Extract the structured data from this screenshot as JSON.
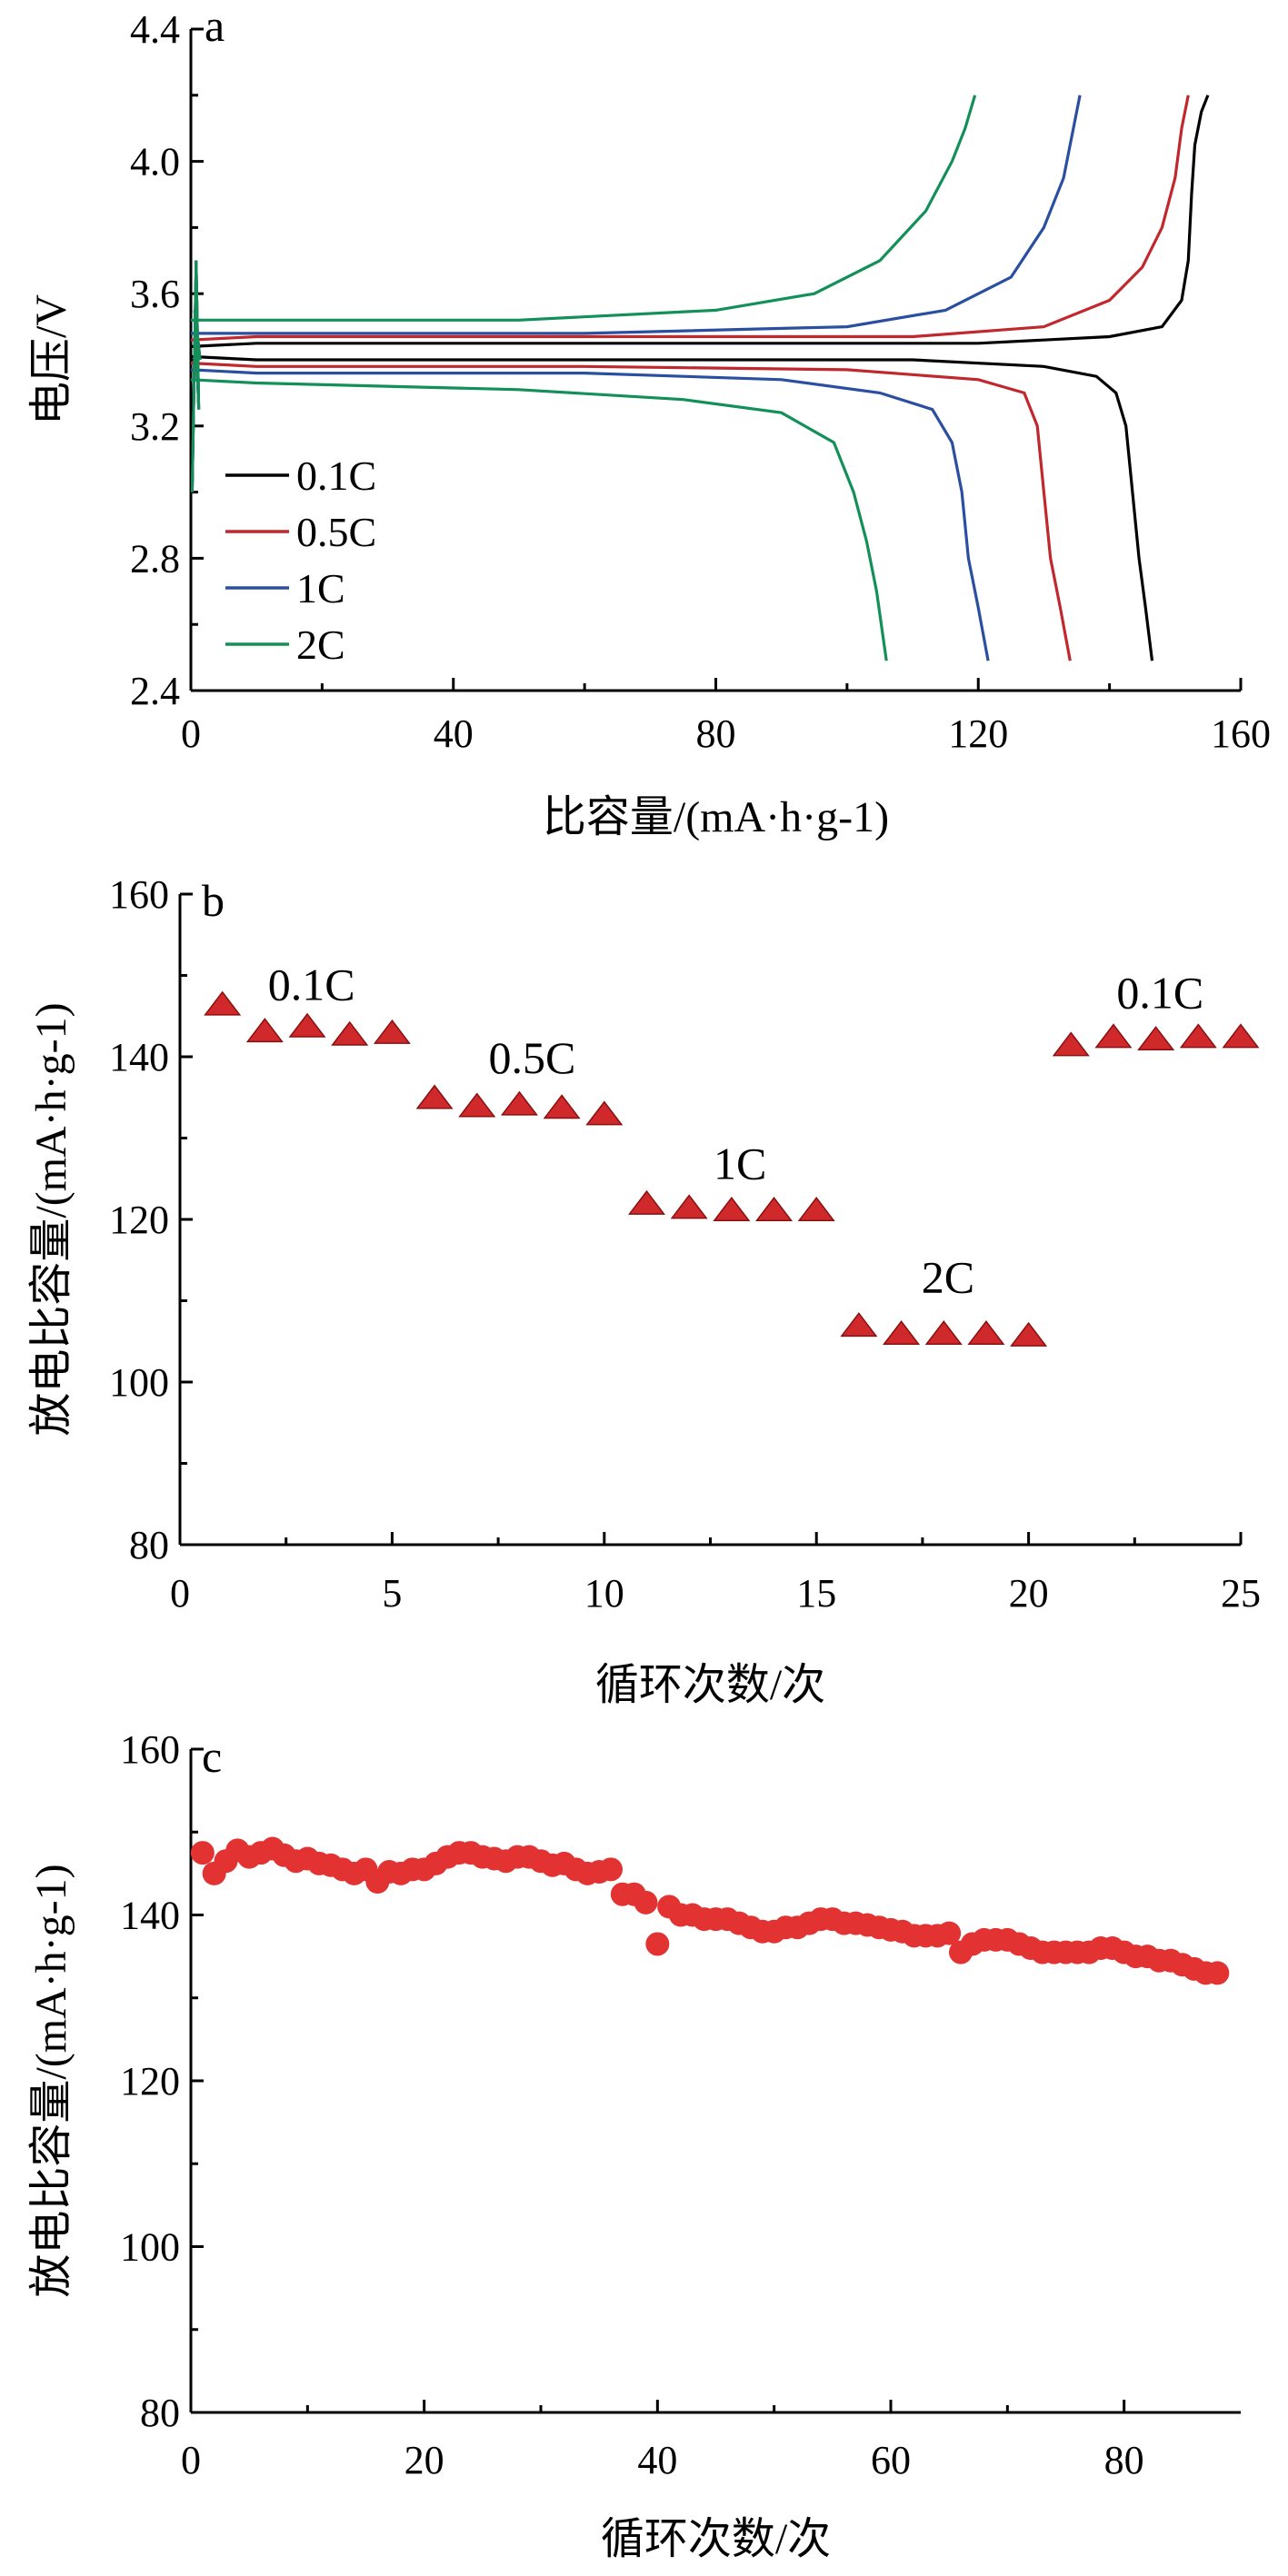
{
  "chart_data": [
    {
      "type": "line",
      "panel_letter": "a",
      "xlabel": "比容量/(mA·h·g-1)",
      "ylabel": "电压/V",
      "xlim": [
        0,
        160
      ],
      "ylim": [
        2.4,
        4.4
      ],
      "x_ticks": [
        0,
        40,
        80,
        120,
        160
      ],
      "y_ticks": [
        2.4,
        2.8,
        3.2,
        3.6,
        4.0,
        4.4
      ],
      "legend": "left-middle",
      "series": [
        {
          "name": "0.1C",
          "color": "#000000",
          "charge": [
            [
              0,
              3.44
            ],
            [
              10,
              3.45
            ],
            [
              60,
              3.45
            ],
            [
              120,
              3.45
            ],
            [
              140,
              3.47
            ],
            [
              148,
              3.5
            ],
            [
              151,
              3.58
            ],
            [
              152,
              3.7
            ],
            [
              152.5,
              3.9
            ],
            [
              153,
              4.05
            ],
            [
              154,
              4.15
            ],
            [
              155,
              4.2
            ]
          ],
          "discharge": [
            [
              0,
              3.41
            ],
            [
              10,
              3.4
            ],
            [
              60,
              3.4
            ],
            [
              110,
              3.4
            ],
            [
              130,
              3.38
            ],
            [
              138,
              3.35
            ],
            [
              141,
              3.3
            ],
            [
              142.5,
              3.2
            ],
            [
              143.5,
              3.0
            ],
            [
              144.5,
              2.8
            ],
            [
              145.5,
              2.65
            ],
            [
              146.5,
              2.49
            ]
          ]
        },
        {
          "name": "0.5C",
          "color": "#c0282d",
          "charge": [
            [
              0,
              3.46
            ],
            [
              10,
              3.47
            ],
            [
              60,
              3.47
            ],
            [
              110,
              3.47
            ],
            [
              130,
              3.5
            ],
            [
              140,
              3.58
            ],
            [
              145,
              3.68
            ],
            [
              148,
              3.8
            ],
            [
              150,
              3.95
            ],
            [
              151,
              4.1
            ],
            [
              152,
              4.2
            ]
          ],
          "discharge": [
            [
              0,
              3.39
            ],
            [
              10,
              3.38
            ],
            [
              60,
              3.38
            ],
            [
              100,
              3.37
            ],
            [
              120,
              3.34
            ],
            [
              127,
              3.3
            ],
            [
              129,
              3.2
            ],
            [
              130,
              3.0
            ],
            [
              131,
              2.8
            ],
            [
              132.5,
              2.65
            ],
            [
              134,
              2.49
            ]
          ]
        },
        {
          "name": "1C",
          "color": "#2b4fa0",
          "charge": [
            [
              0,
              3.48
            ],
            [
              10,
              3.48
            ],
            [
              60,
              3.48
            ],
            [
              100,
              3.5
            ],
            [
              115,
              3.55
            ],
            [
              125,
              3.65
            ],
            [
              130,
              3.8
            ],
            [
              133,
              3.95
            ],
            [
              134.5,
              4.1
            ],
            [
              135.5,
              4.2
            ]
          ],
          "discharge": [
            [
              0,
              3.37
            ],
            [
              10,
              3.36
            ],
            [
              60,
              3.36
            ],
            [
              90,
              3.34
            ],
            [
              105,
              3.3
            ],
            [
              113,
              3.25
            ],
            [
              116,
              3.15
            ],
            [
              117.5,
              3.0
            ],
            [
              118.5,
              2.8
            ],
            [
              120,
              2.65
            ],
            [
              121.5,
              2.49
            ]
          ]
        },
        {
          "name": "2C",
          "color": "#13905a",
          "charge": [
            [
              0,
              3.52
            ],
            [
              10,
              3.52
            ],
            [
              50,
              3.52
            ],
            [
              80,
              3.55
            ],
            [
              95,
              3.6
            ],
            [
              105,
              3.7
            ],
            [
              112,
              3.85
            ],
            [
              116,
              4.0
            ],
            [
              118,
              4.1
            ],
            [
              119.5,
              4.2
            ]
          ],
          "discharge": [
            [
              0,
              3.34
            ],
            [
              10,
              3.33
            ],
            [
              50,
              3.31
            ],
            [
              75,
              3.28
            ],
            [
              90,
              3.24
            ],
            [
              98,
              3.15
            ],
            [
              101,
              3.0
            ],
            [
              103,
              2.85
            ],
            [
              104.5,
              2.7
            ],
            [
              106,
              2.49
            ]
          ]
        }
      ]
    },
    {
      "type": "scatter",
      "panel_letter": "b",
      "xlabel": "循环次数/次",
      "ylabel": "放电比容量/(mA·h·g-1)",
      "xlim": [
        0,
        25
      ],
      "ylim": [
        80,
        160
      ],
      "x_ticks": [
        0,
        5,
        10,
        15,
        20,
        25
      ],
      "y_ticks": [
        80,
        100,
        120,
        140,
        160
      ],
      "marker": "triangle",
      "color": "#d0292b",
      "x": [
        1,
        2,
        3,
        4,
        5,
        6,
        7,
        8,
        9,
        10,
        11,
        12,
        13,
        14,
        15,
        16,
        17,
        18,
        19,
        20,
        21,
        22,
        23,
        24,
        25
      ],
      "values": [
        146.5,
        143.2,
        143.8,
        142.8,
        143,
        135,
        134,
        134.2,
        133.8,
        133,
        122,
        121.5,
        121.2,
        121.2,
        121.2,
        107,
        106,
        106,
        106,
        105.8,
        141.5,
        142.5,
        142.2,
        142.5,
        142.5
      ],
      "annotations": [
        {
          "text": "0.1C",
          "x": 3.1,
          "y": 149
        },
        {
          "text": "0.5C",
          "x": 8.3,
          "y": 140
        },
        {
          "text": "1C",
          "x": 13.2,
          "y": 127
        },
        {
          "text": "2C",
          "x": 18.1,
          "y": 113
        },
        {
          "text": "0.1C",
          "x": 23.1,
          "y": 148
        }
      ]
    },
    {
      "type": "scatter",
      "panel_letter": "c",
      "xlabel": "循环次数/次",
      "ylabel": "放电比容量/(mA·h·g-1)",
      "xlim": [
        0,
        90
      ],
      "ylim": [
        80,
        160
      ],
      "x_ticks": [
        0,
        20,
        40,
        60,
        80
      ],
      "y_ticks": [
        80,
        100,
        120,
        140,
        160
      ],
      "marker": "circle",
      "color": "#e23232",
      "x": [
        1,
        2,
        3,
        4,
        5,
        6,
        7,
        8,
        9,
        10,
        11,
        12,
        13,
        14,
        15,
        16,
        17,
        18,
        19,
        20,
        21,
        22,
        23,
        24,
        25,
        26,
        27,
        28,
        29,
        30,
        31,
        32,
        33,
        34,
        35,
        36,
        37,
        38,
        39,
        40,
        41,
        42,
        43,
        44,
        45,
        46,
        47,
        48,
        49,
        50,
        51,
        52,
        53,
        54,
        55,
        56,
        57,
        58,
        59,
        60,
        61,
        62,
        63,
        64,
        65,
        66,
        67,
        68,
        69,
        70,
        71,
        72,
        73,
        74,
        75,
        76,
        77,
        78,
        79,
        80,
        81,
        82,
        83,
        84,
        85,
        86,
        87,
        88
      ],
      "values": [
        147.5,
        145,
        146.5,
        147.8,
        147,
        147.5,
        148,
        147.2,
        146.5,
        146.8,
        146.2,
        146,
        145.5,
        145,
        145.5,
        144,
        145.2,
        145,
        145.5,
        145.5,
        146.2,
        147,
        147.5,
        147.5,
        147,
        146.8,
        146.5,
        147,
        147,
        146.5,
        146,
        146.2,
        145.5,
        145,
        145.2,
        145.5,
        142.5,
        142.5,
        141.5,
        136.5,
        141,
        140,
        140,
        139.5,
        139.5,
        139.5,
        139,
        138.5,
        138,
        138,
        138.5,
        138.5,
        139,
        139.5,
        139.5,
        139,
        139,
        138.8,
        138.5,
        138.2,
        138,
        137.5,
        137.5,
        137.5,
        137.8,
        135.5,
        136.5,
        137,
        137,
        137,
        136.5,
        136,
        135.5,
        135.5,
        135.5,
        135.5,
        135.5,
        136,
        136,
        135.5,
        135,
        135,
        134.5,
        134.5,
        134,
        133.5,
        133,
        133
      ]
    }
  ]
}
